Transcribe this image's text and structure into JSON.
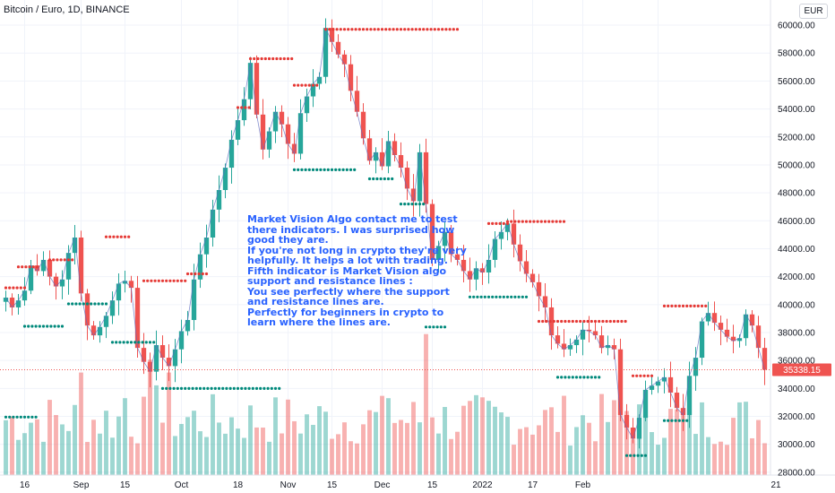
{
  "header": {
    "title": "Bitcoin / Euro, 1D, BINANCE",
    "currency": "EUR"
  },
  "annotation": [
    "Market Vision Algo contact me to test",
    "there indicators.  I was surprised how",
    "good they are.",
    "If you're not long in crypto they're very",
    "helpfully.  It helps a lot with trading.",
    "Fifth indicator is Market Vision algo",
    "support and resistance lines :",
    "You see perfectly where the support",
    "and resistance lines are.",
    "Perfectly for beginners in crypto to",
    "learn where the lines are."
  ],
  "colors": {
    "up": "#26a69a",
    "down": "#ef5350",
    "support": "#00897b",
    "resistance": "#e53935",
    "annotation": "#2962ff",
    "price_tag": "#ef5350"
  },
  "chart_data": {
    "type": "candlestick",
    "title": "Bitcoin / Euro, 1D, BINANCE",
    "y_axis": {
      "ticks": [
        28000,
        30000,
        32000,
        34000,
        36000,
        38000,
        40000,
        42000,
        44000,
        46000,
        48000,
        50000,
        52000,
        54000,
        56000,
        58000,
        60000
      ],
      "range": [
        27800,
        61800
      ],
      "unit": "EUR"
    },
    "x_axis": {
      "ticks": [
        "16",
        "Sep",
        "15",
        "Oct",
        "18",
        "Nov",
        "15",
        "Dec",
        "15",
        "2022",
        "17",
        "Feb",
        "21"
      ]
    },
    "last_price": "35338.15",
    "close_path": [
      40500,
      39800,
      40300,
      41000,
      42800,
      42400,
      43200,
      42000,
      41300,
      41800,
      43700,
      44800,
      40800,
      38500,
      37800,
      38400,
      39200,
      40300,
      41500,
      41700,
      41200,
      36900,
      35900,
      35200,
      37100,
      36200,
      35600,
      36800,
      38100,
      38900,
      41800,
      43600,
      44800,
      46800,
      48200,
      49800,
      51800,
      53200,
      54700,
      57300,
      53600,
      51100,
      52400,
      53800,
      52900,
      51500,
      50800,
      53700,
      54900,
      55800,
      56300,
      59800,
      58800,
      57900,
      57200,
      55300,
      53800,
      51900,
      50300,
      50900,
      49900,
      51700,
      50700,
      49800,
      48300,
      47400,
      50900,
      47200,
      43200,
      44200,
      45200,
      43600,
      43200,
      42400,
      41800,
      42600,
      42300,
      43200,
      44700,
      45200,
      45800,
      44300,
      43100,
      42200,
      41600,
      40600,
      39800,
      37800,
      37200,
      36800,
      37100,
      37500,
      38200,
      38100,
      37800,
      36900,
      37100,
      36800,
      32100,
      31200,
      30400,
      31900,
      33900,
      34200,
      34500,
      34800,
      33700,
      32600,
      32100,
      34900,
      36200,
      38800,
      39400,
      38700,
      38200,
      37700,
      37400,
      37600,
      39300,
      38500,
      36900,
      35338
    ]
  },
  "support_lines": [
    {
      "price": 31950,
      "from": 0,
      "to": 5
    },
    {
      "price": 38450,
      "from": 3,
      "to": 9
    },
    {
      "price": 40050,
      "from": 10,
      "to": 16
    },
    {
      "price": 37300,
      "from": 17,
      "to": 24
    },
    {
      "price": 34000,
      "from": 25,
      "to": 44
    },
    {
      "price": 49650,
      "from": 46,
      "to": 56
    },
    {
      "price": 49000,
      "from": 58,
      "to": 62
    },
    {
      "price": 47200,
      "from": 63,
      "to": 67
    },
    {
      "price": 38400,
      "from": 67,
      "to": 70
    },
    {
      "price": 40550,
      "from": 74,
      "to": 83
    },
    {
      "price": 34800,
      "from": 88,
      "to": 95
    },
    {
      "price": 29200,
      "from": 99,
      "to": 102
    },
    {
      "price": 31700,
      "from": 105,
      "to": 109
    }
  ],
  "resistance_lines": [
    {
      "price": 41200,
      "from": 0,
      "to": 3
    },
    {
      "price": 42700,
      "from": 2,
      "to": 5
    },
    {
      "price": 43200,
      "from": 7,
      "to": 11
    },
    {
      "price": 44850,
      "from": 16,
      "to": 20
    },
    {
      "price": 41700,
      "from": 22,
      "to": 29
    },
    {
      "price": 42200,
      "from": 29,
      "to": 32
    },
    {
      "price": 54100,
      "from": 37,
      "to": 39
    },
    {
      "price": 57600,
      "from": 39,
      "to": 46
    },
    {
      "price": 55700,
      "from": 46,
      "to": 50
    },
    {
      "price": 59700,
      "from": 51,
      "to": 72
    },
    {
      "price": 45800,
      "from": 77,
      "to": 80
    },
    {
      "price": 45950,
      "from": 80,
      "to": 89
    },
    {
      "price": 38800,
      "from": 85,
      "to": 99
    },
    {
      "price": 34900,
      "from": 100,
      "to": 103
    },
    {
      "price": 39900,
      "from": 105,
      "to": 112
    }
  ]
}
